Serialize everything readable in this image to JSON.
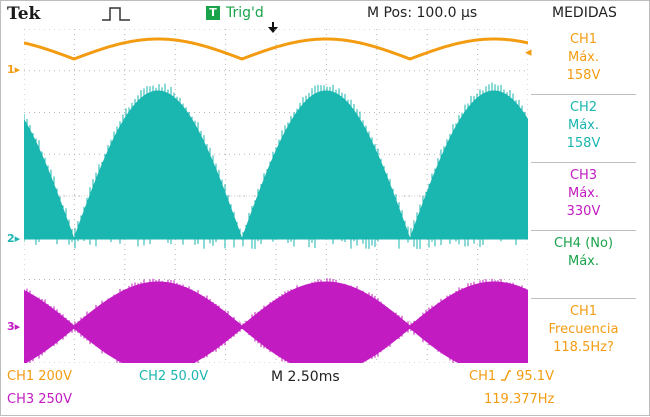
{
  "header": {
    "brand": "Tek",
    "trig_badge": "T",
    "trig_status": "Trig'd",
    "m_pos": "M Pos: 100.0 µs",
    "measurements_title": "MEDIDAS"
  },
  "markers": {
    "ch1": "1",
    "ch2": "2",
    "ch3": "3"
  },
  "measurements": [
    {
      "line1": "CH1",
      "line2": "Máx.",
      "line3": "158V"
    },
    {
      "line1": "CH2",
      "line2": "Máx.",
      "line3": "158V"
    },
    {
      "line1": "CH3",
      "line2": "Máx.",
      "line3": "330V"
    },
    {
      "line1": "CH4 (No)",
      "line2": "Máx.",
      "line3": ""
    },
    {
      "line1": "CH1",
      "line2": "Frecuencia",
      "line3": "118.5Hz?"
    }
  ],
  "footer": {
    "ch1_scale": "CH1  200V",
    "ch2_scale": "CH2  50.0V",
    "timebase": "M 2.50ms",
    "trigger_source": "CH1",
    "trigger_level": "95.1V",
    "ch3_scale": "CH3  250V",
    "frequency": "119.377Hz"
  },
  "colors": {
    "ch1": "#f39c12",
    "ch2": "#1ab6b0",
    "ch3": "#c21bc2",
    "trig": "#1aa34a"
  },
  "icons": [
    "pulse-icon",
    "trigger-position-icon",
    "rising-slope-icon"
  ]
}
